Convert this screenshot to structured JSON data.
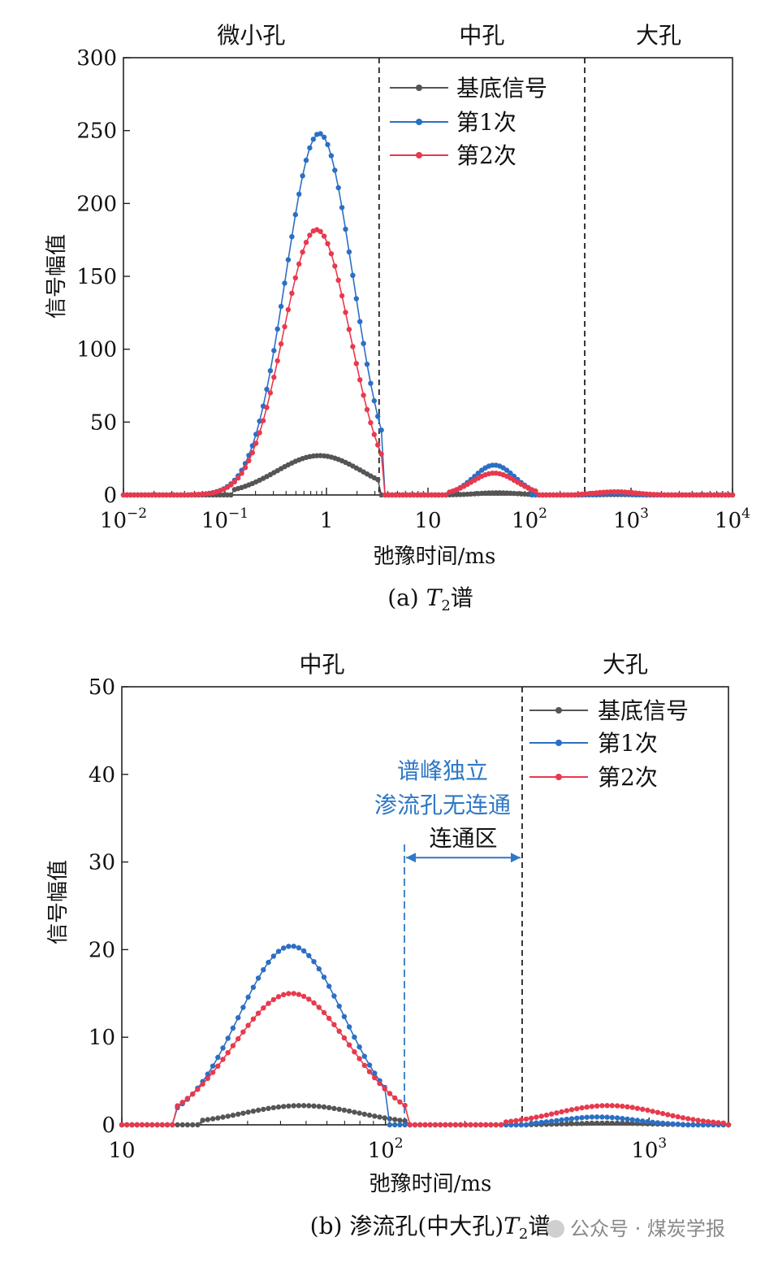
{
  "colors": {
    "base": "#555555",
    "first": "#2b6fc4",
    "second": "#e8394d",
    "annotation": "#2e78c6"
  },
  "watermark": "公众号 · 煤炭学报",
  "chart_data": [
    {
      "type": "line",
      "xscale": "log",
      "xlim": [
        0.01,
        10000
      ],
      "ylim": [
        0,
        300
      ],
      "xlabel": "弛豫时间/ms",
      "ylabel": "信号幅值",
      "caption_prefix": "(a) ",
      "caption_italic": "T",
      "caption_sub": "2",
      "caption_suffix": "谱",
      "yticks": [
        "0",
        "50",
        "100",
        "150",
        "200",
        "250",
        "300"
      ],
      "xticks": [
        {
          "base": "10",
          "exp": "−2"
        },
        {
          "base": "10",
          "exp": "−1"
        },
        {
          "base": "1",
          "exp": ""
        },
        {
          "base": "10",
          "exp": ""
        },
        {
          "base": "10",
          "exp": "2"
        },
        {
          "base": "10",
          "exp": "3"
        },
        {
          "base": "10",
          "exp": "4"
        }
      ],
      "regions": [
        "微小孔",
        "中孔",
        "大孔"
      ],
      "dividers": [
        3.3,
        350
      ],
      "legend": [
        "基底信号",
        "第1次",
        "第2次"
      ],
      "legend_position": "top-right",
      "series": [
        {
          "name": "基底信号",
          "peaks": [
            {
              "center": 0.85,
              "amp": 27,
              "width": 0.42,
              "lo": 0.12,
              "hi": 3.3
            },
            {
              "center": 48,
              "amp": 1.5,
              "width": 0.2,
              "lo": 15,
              "hi": 120
            },
            {
              "center": 700,
              "amp": 0.3,
              "width": 0.15,
              "lo": 350,
              "hi": 1400
            }
          ]
        },
        {
          "name": "第1次",
          "peaks": [
            {
              "center": 0.85,
              "amp": 248,
              "width": 0.33,
              "lo": 0.045,
              "hi": 3.5
            },
            {
              "center": 45,
              "amp": 20.5,
              "width": 0.2,
              "lo": 16,
              "hi": 100
            },
            {
              "center": 700,
              "amp": 0.8,
              "width": 0.15,
              "lo": 350,
              "hi": 1400
            }
          ]
        },
        {
          "name": "第2次",
          "peaks": [
            {
              "center": 0.8,
              "amp": 182,
              "width": 0.33,
              "lo": 0.045,
              "hi": 3.5
            },
            {
              "center": 45,
              "amp": 15,
              "width": 0.22,
              "lo": 16,
              "hi": 120
            },
            {
              "center": 700,
              "amp": 2.2,
              "width": 0.2,
              "lo": 300,
              "hi": 2000
            }
          ]
        }
      ]
    },
    {
      "type": "line",
      "xscale": "log",
      "xlim": [
        10,
        2000
      ],
      "ylim": [
        0,
        50
      ],
      "xlabel": "弛豫时间/ms",
      "ylabel": "信号幅值",
      "caption_prefix": "(b) 渗流孔(中大孔)",
      "caption_italic": "T",
      "caption_sub": "2",
      "caption_suffix": "谱",
      "yticks": [
        "0",
        "10",
        "20",
        "30",
        "40",
        "50"
      ],
      "xticks": [
        {
          "base": "10",
          "exp": ""
        },
        {
          "base": "10",
          "exp": "2"
        },
        {
          "base": "10",
          "exp": "3"
        }
      ],
      "regions": [
        "中孔",
        "大孔"
      ],
      "dividers": [
        330
      ],
      "connect_zone": [
        118,
        330
      ],
      "annotation_lines": [
        "谱峰独立",
        "渗流孔无连通"
      ],
      "connect_label": "连通区",
      "legend": [
        "基底信号",
        "第1次",
        "第2次"
      ],
      "legend_position": "top-right",
      "series": [
        {
          "name": "基底信号",
          "peaks": [
            {
              "center": 48,
              "amp": 2.2,
              "width": 0.22,
              "lo": 20,
              "hi": 120
            },
            {
              "center": 700,
              "amp": 0.2,
              "width": 0.15,
              "lo": 350,
              "hi": 1400
            }
          ]
        },
        {
          "name": "第1次",
          "peaks": [
            {
              "center": 44,
              "amp": 20.4,
              "width": 0.2,
              "lo": 16,
              "hi": 100
            },
            {
              "center": 640,
              "amp": 0.9,
              "width": 0.14,
              "lo": 350,
              "hi": 1300
            }
          ]
        },
        {
          "name": "第2次",
          "peaks": [
            {
              "center": 44,
              "amp": 15,
              "width": 0.22,
              "lo": 16,
              "hi": 120
            },
            {
              "center": 700,
              "amp": 2.2,
              "width": 0.2,
              "lo": 280,
              "hi": 2000
            }
          ]
        }
      ]
    }
  ]
}
